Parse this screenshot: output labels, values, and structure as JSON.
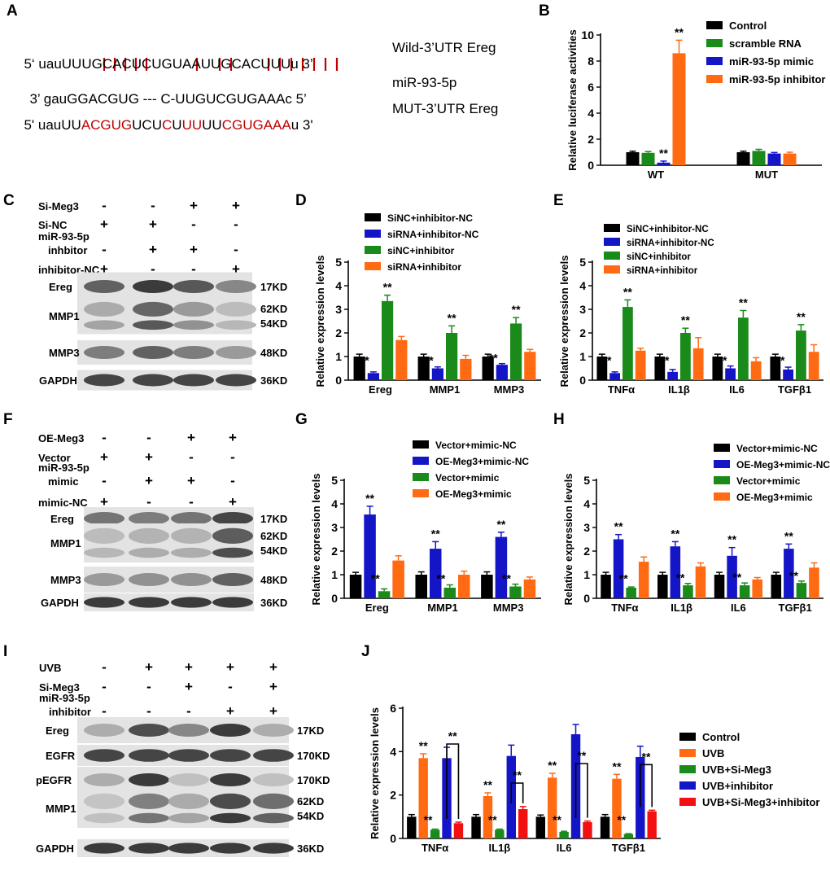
{
  "panels": {
    "A": "A",
    "B": "B",
    "C": "C",
    "D": "D",
    "E": "E",
    "F": "F",
    "G": "G",
    "H": "H",
    "I": "I",
    "J": "J"
  },
  "sequences": {
    "wild": {
      "prefix": "5‘ uau",
      "body": "UUUGCACUCUGUAAUUGCACUUU",
      "suffix": "u 3’",
      "label": "Wild-3’UTR Ereg"
    },
    "mir": {
      "prefix": "3’ gau",
      "body": "GGACGUG --- C-UUGUCGUGAAA",
      "suffix": "c 5’",
      "label": "miR-93-5p"
    },
    "mut": {
      "prefix": "5' uau",
      "segments": [
        [
          "UU",
          false
        ],
        [
          "ACGUG",
          true
        ],
        [
          "UCU",
          false
        ],
        [
          "C",
          true
        ],
        [
          "U",
          false
        ],
        [
          "UU",
          true
        ],
        [
          "UU",
          false
        ],
        [
          "CGUGAAA",
          true
        ]
      ],
      "suffix": "u 3'",
      "label": "MUT-3’UTR Ereg"
    }
  },
  "colors": {
    "black": "#000000",
    "green": "#1a8a1a",
    "blue": "#1515c8",
    "orange": "#ff6a13",
    "red": "#f21010",
    "mut_red": "#c00000",
    "pair_red": "#c00000"
  },
  "blots": {
    "C": {
      "conditions": [
        {
          "name": "Si-Meg3",
          "signs": [
            "-",
            "-",
            "+",
            "+"
          ]
        },
        {
          "name": "Si-NC",
          "signs": [
            "+",
            "+",
            "-",
            "-"
          ]
        },
        {
          "name": "miR-93-5p inhbitor",
          "signs": [
            "-",
            "+",
            "+",
            "-"
          ]
        },
        {
          "name": "inhibitor-NC",
          "signs": [
            "+",
            "-",
            "-",
            "+"
          ]
        }
      ],
      "bands": [
        {
          "name": "Ereg",
          "kd": "17KD"
        },
        {
          "name": "MMP1",
          "kd": "62KD\n54KD"
        },
        {
          "name": "MMP3",
          "kd": "48KD"
        },
        {
          "name": "GAPDH",
          "kd": "36KD"
        }
      ]
    },
    "F": {
      "conditions": [
        {
          "name": "OE-Meg3",
          "signs": [
            "-",
            "-",
            "+",
            "+"
          ]
        },
        {
          "name": "Vector",
          "signs": [
            "+",
            "+",
            "-",
            "-"
          ]
        },
        {
          "name": "miR-93-5p mimic",
          "signs": [
            "-",
            "+",
            "+",
            "-"
          ]
        },
        {
          "name": "mimic-NC",
          "signs": [
            "+",
            "-",
            "-",
            "+"
          ]
        }
      ],
      "bands": [
        {
          "name": "Ereg",
          "kd": "17KD"
        },
        {
          "name": "MMP1",
          "kd": "62KD\n54KD"
        },
        {
          "name": "MMP3",
          "kd": "48KD"
        },
        {
          "name": "GAPDH",
          "kd": "36KD"
        }
      ]
    },
    "I": {
      "conditions": [
        {
          "name": "UVB",
          "signs": [
            "-",
            "+",
            "+",
            "+",
            "+"
          ]
        },
        {
          "name": "Si-Meg3",
          "signs": [
            "-",
            "-",
            "+",
            "-",
            "+"
          ]
        },
        {
          "name": "miR-93-5p inhibitor",
          "signs": [
            "-",
            "-",
            "-",
            "+",
            "+"
          ]
        }
      ],
      "bands": [
        {
          "name": "Ereg",
          "kd": "17KD"
        },
        {
          "name": "EGFR",
          "kd": "170KD"
        },
        {
          "name": "pEGFR",
          "kd": "170KD"
        },
        {
          "name": "MMP1",
          "kd": "62KD\n54KD"
        },
        {
          "name": "GAPDH",
          "kd": "36KD"
        }
      ]
    }
  },
  "chart_data": [
    {
      "id": "B",
      "type": "bar",
      "ylabel": "Relative luciferase activities",
      "ylim": [
        0,
        10
      ],
      "yticks": [
        0,
        2,
        4,
        6,
        8,
        10
      ],
      "categories": [
        "WT",
        "MUT"
      ],
      "series": [
        {
          "name": "Control",
          "color": "#000000",
          "values": [
            1.0,
            1.0
          ],
          "err": [
            0.08,
            0.08
          ],
          "sig": [
            "",
            ""
          ]
        },
        {
          "name": "scramble RNA",
          "color": "#1a8a1a",
          "values": [
            0.95,
            1.1
          ],
          "err": [
            0.1,
            0.12
          ],
          "sig": [
            "",
            ""
          ]
        },
        {
          "name": "miR-93-5p mimic",
          "color": "#1515c8",
          "values": [
            0.2,
            0.9
          ],
          "err": [
            0.12,
            0.08
          ],
          "sig": [
            "**",
            ""
          ]
        },
        {
          "name": "miR-93-5p inhibitor",
          "color": "#ff6a13",
          "values": [
            8.6,
            0.9
          ],
          "err": [
            1.0,
            0.1
          ],
          "sig": [
            "**",
            ""
          ]
        }
      ]
    },
    {
      "id": "D",
      "type": "bar",
      "ylabel": "Relative expression levels",
      "ylim": [
        0,
        5
      ],
      "yticks": [
        0,
        1,
        2,
        3,
        4,
        5
      ],
      "categories": [
        "Ereg",
        "MMP1",
        "MMP3"
      ],
      "series": [
        {
          "name": "SiNC+inhibitor-NC",
          "color": "#000000",
          "values": [
            1.0,
            1.0,
            1.0
          ],
          "err": [
            0.1,
            0.1,
            0.1
          ],
          "sig": [
            "",
            "",
            ""
          ]
        },
        {
          "name": "siRNA+inhibitor-NC",
          "color": "#1515c8",
          "values": [
            0.3,
            0.5,
            0.65
          ],
          "err": [
            0.05,
            0.06,
            0.05
          ],
          "sig": [
            "**",
            "**",
            "**"
          ]
        },
        {
          "name": "siNC+inhibitor",
          "color": "#1a8a1a",
          "values": [
            3.35,
            2.0,
            2.4
          ],
          "err": [
            0.25,
            0.3,
            0.25
          ],
          "sig": [
            "**",
            "**",
            "**"
          ]
        },
        {
          "name": "siRNA+inhibitor",
          "color": "#ff6a13",
          "values": [
            1.7,
            0.9,
            1.2
          ],
          "err": [
            0.15,
            0.15,
            0.1
          ],
          "sig": [
            "",
            "",
            ""
          ]
        }
      ]
    },
    {
      "id": "E",
      "type": "bar",
      "ylabel": "Relative expression levels",
      "ylim": [
        0,
        5
      ],
      "yticks": [
        0,
        1,
        2,
        3,
        4,
        5
      ],
      "categories": [
        "TNFα",
        "IL1β",
        "IL6",
        "TGFβ1"
      ],
      "series": [
        {
          "name": "SiNC+inhibitor-NC",
          "color": "#000000",
          "values": [
            1.0,
            1.0,
            1.0,
            1.0
          ],
          "err": [
            0.1,
            0.1,
            0.1,
            0.1
          ],
          "sig": [
            "",
            "",
            "",
            ""
          ]
        },
        {
          "name": "siRNA+inhibitor-NC",
          "color": "#1515c8",
          "values": [
            0.3,
            0.35,
            0.5,
            0.45
          ],
          "err": [
            0.05,
            0.1,
            0.1,
            0.1
          ],
          "sig": [
            "**",
            "**",
            "**",
            "**"
          ]
        },
        {
          "name": "siNC+inhibitor",
          "color": "#1a8a1a",
          "values": [
            3.1,
            2.0,
            2.65,
            2.1
          ],
          "err": [
            0.3,
            0.2,
            0.3,
            0.25
          ],
          "sig": [
            "**",
            "**",
            "**",
            "**"
          ]
        },
        {
          "name": "siRNA+inhibitor",
          "color": "#ff6a13",
          "values": [
            1.25,
            1.35,
            0.8,
            1.2
          ],
          "err": [
            0.1,
            0.45,
            0.15,
            0.3
          ],
          "sig": [
            "",
            "",
            "",
            ""
          ]
        }
      ]
    },
    {
      "id": "G",
      "type": "bar",
      "ylabel": "Relative expression levels",
      "ylim": [
        0,
        5
      ],
      "yticks": [
        0,
        1,
        2,
        3,
        4,
        5
      ],
      "categories": [
        "Ereg",
        "MMP1",
        "MMP3"
      ],
      "series": [
        {
          "name": "Vector+mimic-NC",
          "color": "#000000",
          "values": [
            1.0,
            1.0,
            1.0
          ],
          "err": [
            0.1,
            0.12,
            0.12
          ],
          "sig": [
            "",
            "",
            ""
          ]
        },
        {
          "name": "OE-Meg3+mimic-NC",
          "color": "#1515c8",
          "values": [
            3.55,
            2.1,
            2.6
          ],
          "err": [
            0.35,
            0.3,
            0.2
          ],
          "sig": [
            "**",
            "**",
            "**"
          ]
        },
        {
          "name": "Vector+mimic",
          "color": "#1a8a1a",
          "values": [
            0.3,
            0.45,
            0.5
          ],
          "err": [
            0.1,
            0.12,
            0.1
          ],
          "sig": [
            "**",
            "**",
            "**"
          ]
        },
        {
          "name": "OE-Meg3+mimic",
          "color": "#ff6a13",
          "values": [
            1.6,
            1.0,
            0.8
          ],
          "err": [
            0.2,
            0.15,
            0.1
          ],
          "sig": [
            "",
            "",
            ""
          ]
        }
      ]
    },
    {
      "id": "H",
      "type": "bar",
      "ylabel": "Relative expression levels",
      "ylim": [
        0,
        5
      ],
      "yticks": [
        0,
        1,
        2,
        3,
        4,
        5
      ],
      "categories": [
        "TNFα",
        "IL1β",
        "IL6",
        "TGFβ1"
      ],
      "series": [
        {
          "name": "Vector+mimic-NC",
          "color": "#000000",
          "values": [
            1.0,
            1.0,
            1.0,
            1.0
          ],
          "err": [
            0.1,
            0.1,
            0.1,
            0.1
          ],
          "sig": [
            "",
            "",
            "",
            ""
          ]
        },
        {
          "name": "OE-Meg3+mimic-NC",
          "color": "#1515c8",
          "values": [
            2.5,
            2.2,
            1.8,
            2.1
          ],
          "err": [
            0.2,
            0.2,
            0.35,
            0.2
          ],
          "sig": [
            "**",
            "**",
            "**",
            "**"
          ]
        },
        {
          "name": "Vector+mimic",
          "color": "#1a8a1a",
          "values": [
            0.45,
            0.55,
            0.55,
            0.65
          ],
          "err": [
            0.03,
            0.08,
            0.1,
            0.08
          ],
          "sig": [
            "**",
            "**",
            "**",
            "**"
          ]
        },
        {
          "name": "OE-Meg3+mimic",
          "color": "#ff6a13",
          "values": [
            1.55,
            1.35,
            0.8,
            1.3
          ],
          "err": [
            0.2,
            0.15,
            0.08,
            0.2
          ],
          "sig": [
            "",
            "",
            "",
            ""
          ]
        }
      ]
    },
    {
      "id": "J",
      "type": "bar",
      "ylabel": "Relative expression levels",
      "ylim": [
        0,
        6
      ],
      "yticks": [
        0,
        2,
        4,
        6
      ],
      "categories": [
        "TNFα",
        "IL1β",
        "IL6",
        "TGFβ1"
      ],
      "series": [
        {
          "name": "Control",
          "color": "#000000",
          "values": [
            1.0,
            1.0,
            1.0,
            1.0
          ],
          "err": [
            0.1,
            0.1,
            0.08,
            0.1
          ],
          "sig": [
            "",
            "",
            "",
            ""
          ]
        },
        {
          "name": "UVB",
          "color": "#ff6a13",
          "values": [
            3.7,
            1.95,
            2.8,
            2.75
          ],
          "err": [
            0.2,
            0.15,
            0.2,
            0.2
          ],
          "sig": [
            "**",
            "**",
            "**",
            "**"
          ]
        },
        {
          "name": "UVB+Si-Meg3",
          "color": "#1a8a1a",
          "values": [
            0.4,
            0.4,
            0.3,
            0.2
          ],
          "err": [
            0.03,
            0.03,
            0.03,
            0.02
          ],
          "sig": [
            "**",
            "**",
            "**",
            "**"
          ]
        },
        {
          "name": "UVB+inhibitor",
          "color": "#1515c8",
          "values": [
            3.7,
            3.8,
            4.8,
            3.75
          ],
          "err": [
            0.5,
            0.5,
            0.45,
            0.5
          ],
          "sig": [
            "",
            "",
            "",
            ""
          ]
        },
        {
          "name": "UVB+Si-Meg3+inhibitor",
          "color": "#f21010",
          "values": [
            0.7,
            1.35,
            0.75,
            1.25
          ],
          "err": [
            0.05,
            0.12,
            0.05,
            0.05
          ],
          "sig": [
            "",
            "",
            "",
            ""
          ]
        }
      ],
      "brackets": {
        "from": 1,
        "to": 4,
        "sig": "**"
      }
    }
  ]
}
